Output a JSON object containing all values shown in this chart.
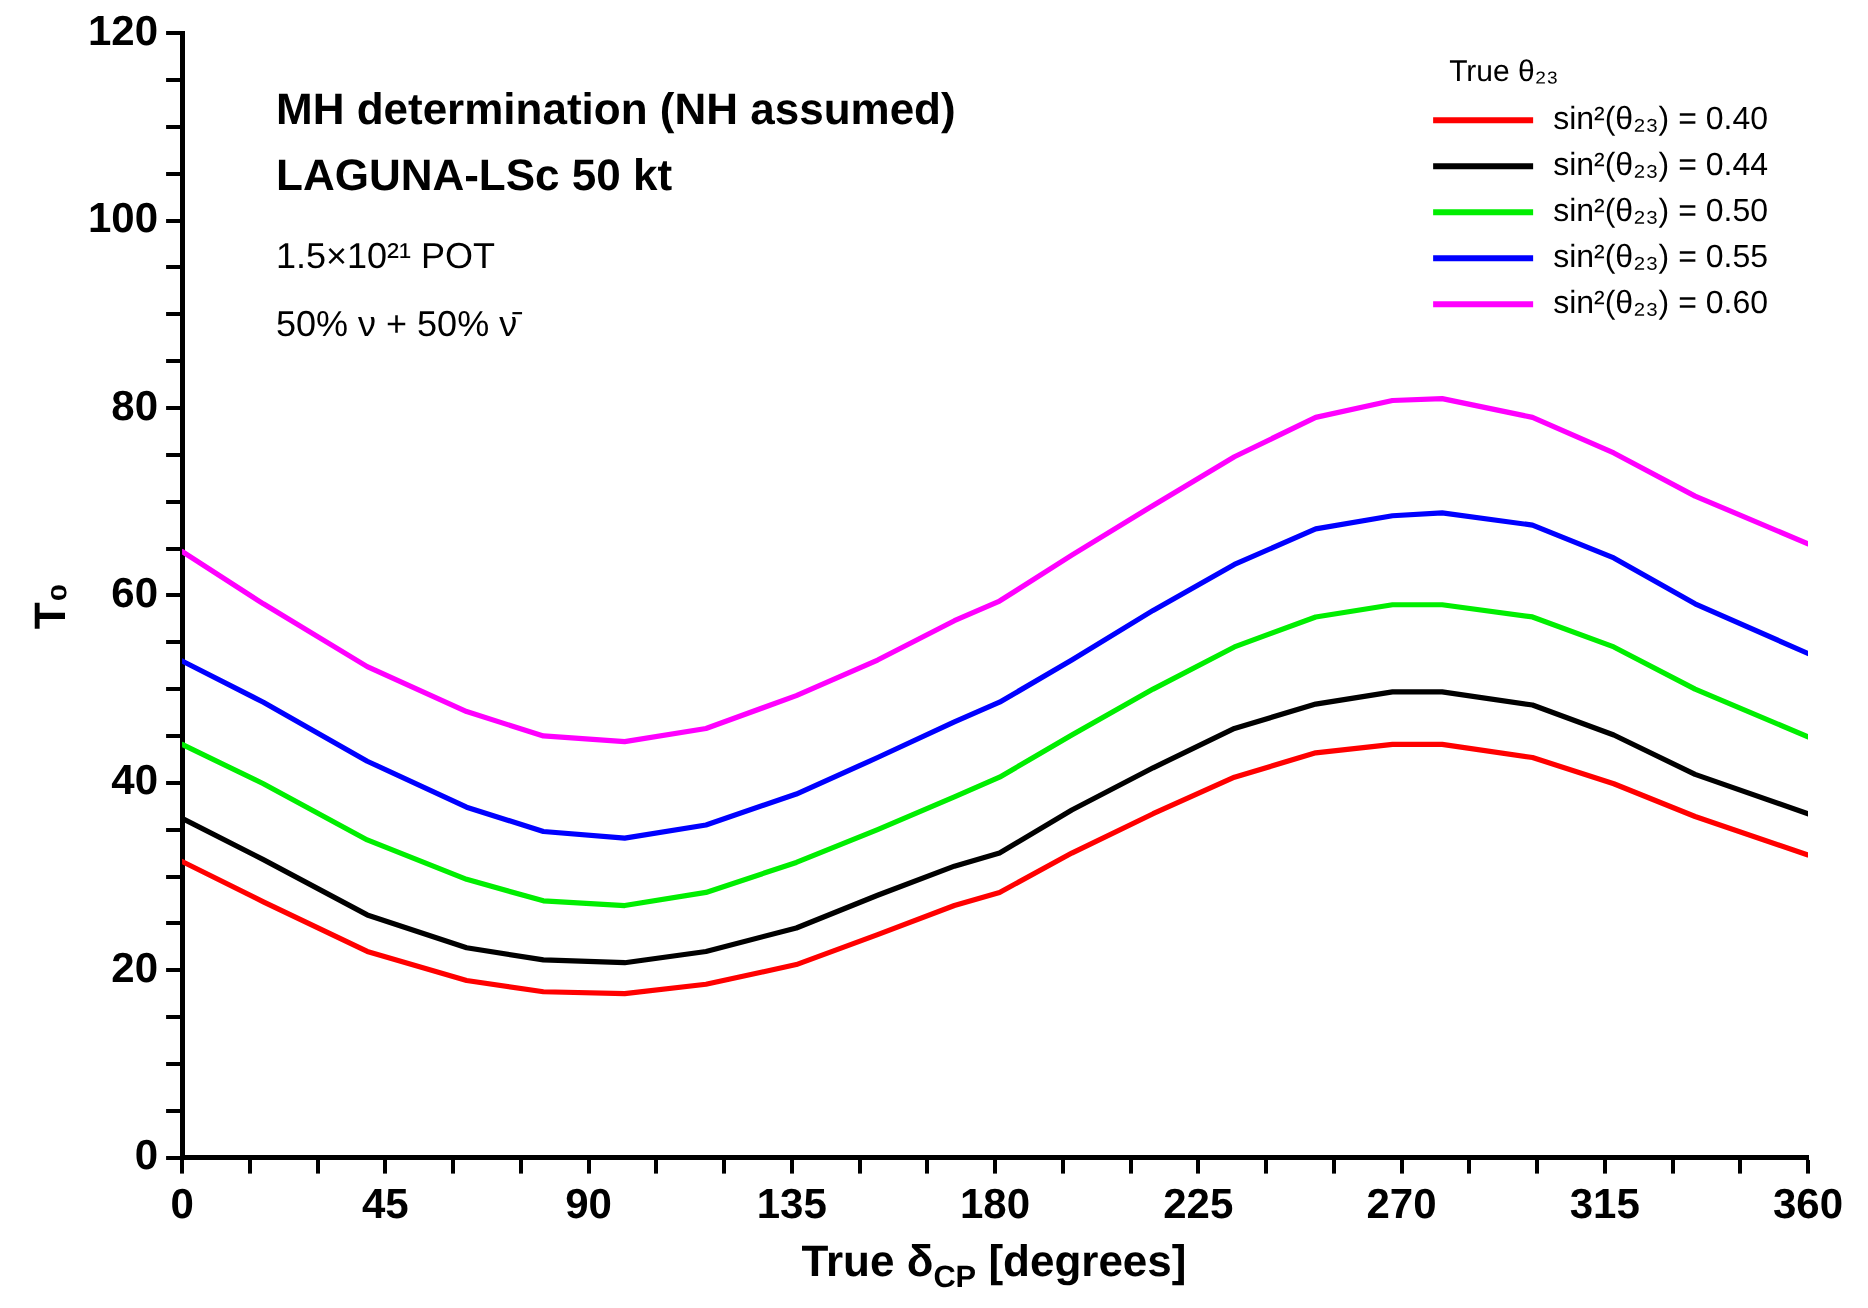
{
  "chart_data": {
    "type": "line",
    "title": "MH determination (NH assumed)",
    "subtitle": "LAGUNA-LSc 50 kt",
    "annotations": [
      "1.5×10²¹ POT",
      "50% ν + 50% ν̄"
    ],
    "xlabel": "True δ$_{CP}$ [degrees]",
    "ylabel": "T₀",
    "legend_title": "True θ₂₃",
    "legend": "top right",
    "grid": false,
    "x": [
      0,
      18,
      41,
      63,
      80,
      98,
      116,
      136,
      154,
      171,
      181,
      197,
      215,
      233,
      251,
      268,
      279,
      299,
      317,
      335,
      360
    ],
    "xlim": [
      0,
      360
    ],
    "ylim": [
      0,
      120
    ],
    "xticks": [
      0,
      {
        "value": 15,
        "label": null
      },
      {
        "value": 30,
        "label": null
      },
      45,
      {
        "value": 60,
        "label": null
      },
      {
        "value": 75,
        "label": null
      },
      90,
      {
        "value": 105,
        "label": null
      },
      {
        "value": 120,
        "label": null
      },
      135,
      {
        "value": 150,
        "label": null
      },
      {
        "value": 165,
        "label": null
      },
      180,
      {
        "value": 195,
        "label": null
      },
      {
        "value": 210,
        "label": null
      },
      225,
      {
        "value": 240,
        "label": null
      },
      {
        "value": 255,
        "label": null
      },
      270,
      {
        "value": 285,
        "label": null
      },
      {
        "value": 300,
        "label": null
      },
      315,
      {
        "value": 330,
        "label": null
      },
      {
        "value": 345,
        "label": null
      },
      360
    ],
    "yticks": [
      0,
      {
        "value": 5,
        "label": null
      },
      {
        "value": 10,
        "label": null
      },
      {
        "value": 15,
        "label": null
      },
      20,
      {
        "value": 25,
        "label": null
      },
      {
        "value": 30,
        "label": null
      },
      {
        "value": 35,
        "label": null
      },
      40,
      {
        "value": 45,
        "label": null
      },
      {
        "value": 50,
        "label": null
      },
      {
        "value": 55,
        "label": null
      },
      60,
      {
        "value": 65,
        "label": null
      },
      {
        "value": 70,
        "label": null
      },
      {
        "value": 75,
        "label": null
      },
      80,
      {
        "value": 85,
        "label": null
      },
      {
        "value": 90,
        "label": null
      },
      {
        "value": 95,
        "label": null
      },
      100,
      {
        "value": 105,
        "label": null
      },
      {
        "value": 110,
        "label": null
      },
      {
        "value": 115,
        "label": null
      },
      120
    ],
    "series": [
      {
        "name": "sin²(θ₂₃) = 0.40",
        "color": "#ff0000",
        "values": [
          31.6,
          27.3,
          22.0,
          18.9,
          17.7,
          17.5,
          18.5,
          20.6,
          23.8,
          26.9,
          28.3,
          32.5,
          36.7,
          40.6,
          43.2,
          44.1,
          44.1,
          42.7,
          39.9,
          36.4,
          32.3
        ]
      },
      {
        "name": "sin²(θ₂₃) = 0.44",
        "color": "#000000",
        "values": [
          36.2,
          31.8,
          25.9,
          22.4,
          21.1,
          20.8,
          22.0,
          24.5,
          28.0,
          31.1,
          32.5,
          37.1,
          41.6,
          45.8,
          48.4,
          49.7,
          49.7,
          48.3,
          45.1,
          40.9,
          36.7
        ]
      },
      {
        "name": "sin²(θ₂₃) = 0.50",
        "color": "#00ee00",
        "values": [
          44.1,
          39.9,
          33.9,
          29.7,
          27.4,
          26.9,
          28.3,
          31.5,
          35.0,
          38.5,
          40.6,
          45.1,
          50.0,
          54.5,
          57.7,
          59.0,
          59.0,
          57.7,
          54.5,
          50.0,
          44.9
        ]
      },
      {
        "name": "sin²(θ₂₃) = 0.55",
        "color": "#0000ff",
        "values": [
          53.0,
          48.6,
          42.3,
          37.4,
          34.8,
          34.1,
          35.5,
          38.8,
          42.7,
          46.5,
          48.6,
          53.1,
          58.4,
          63.3,
          67.1,
          68.5,
          68.8,
          67.5,
          64.0,
          59.1,
          53.8
        ]
      },
      {
        "name": "sin²(θ₂₃) = 0.60",
        "color": "#ff00ff",
        "values": [
          64.7,
          59.1,
          52.4,
          47.6,
          45.0,
          44.4,
          45.8,
          49.3,
          53.1,
          57.3,
          59.4,
          64.3,
          69.6,
          74.8,
          79.0,
          80.8,
          81.0,
          79.0,
          75.2,
          70.6,
          65.5
        ]
      }
    ]
  }
}
